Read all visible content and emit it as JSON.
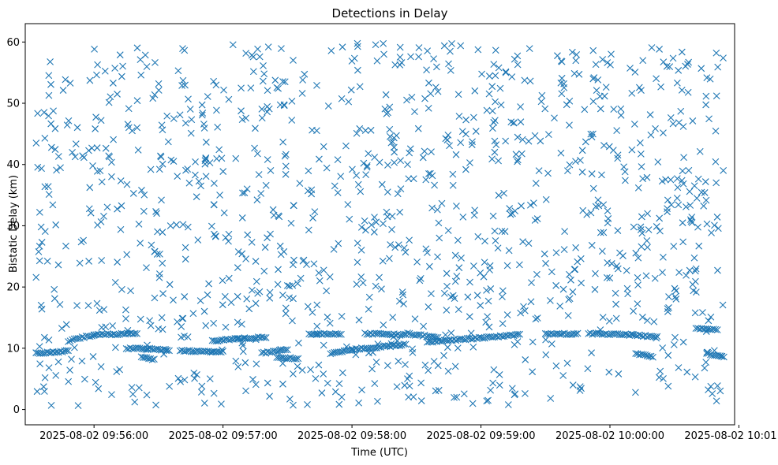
{
  "chart_data": {
    "type": "scatter",
    "title": "Detections in Delay",
    "xlabel": "Time (UTC)",
    "ylabel": "Bistatic Delay (km)",
    "x_unit": "time",
    "xlim": [
      "2025-08-02 09:55:28",
      "2025-08-02 10:00:58"
    ],
    "ylim": [
      -2.5,
      63
    ],
    "x_ticks": [
      "2025-08-02 09:56:00",
      "2025-08-02 09:57:00",
      "2025-08-02 09:58:00",
      "2025-08-02 09:59:00",
      "2025-08-02 10:00:00",
      "2025-08-02 10:01:00"
    ],
    "y_ticks": [
      0,
      10,
      20,
      30,
      40,
      50,
      60
    ],
    "grid": false,
    "marker": "x",
    "marker_color": "#1f77b4",
    "time_span": [
      "2025-08-02 09:55:33",
      "2025-08-02 10:00:53"
    ],
    "noise_point_count": 1150,
    "noise_delay_range": [
      0.5,
      59.8
    ],
    "tracks": [
      {
        "points": [
          [
            "2025-08-02 09:55:33",
            9.2
          ],
          [
            "2025-08-02 09:55:40",
            9.3
          ],
          [
            "2025-08-02 09:55:48",
            9.6
          ]
        ]
      },
      {
        "points": [
          [
            "2025-08-02 09:55:48",
            11.2
          ],
          [
            "2025-08-02 09:56:00",
            12.2
          ],
          [
            "2025-08-02 09:56:20",
            12.4
          ]
        ]
      },
      {
        "points": [
          [
            "2025-08-02 09:56:15",
            10.0
          ],
          [
            "2025-08-02 09:56:25",
            9.9
          ],
          [
            "2025-08-02 09:56:35",
            9.7
          ]
        ]
      },
      {
        "points": [
          [
            "2025-08-02 09:56:22",
            8.5
          ],
          [
            "2025-08-02 09:56:28",
            8.2
          ]
        ]
      },
      {
        "points": [
          [
            "2025-08-02 09:56:40",
            9.6
          ],
          [
            "2025-08-02 09:56:55",
            9.4
          ],
          [
            "2025-08-02 09:57:00",
            9.5
          ]
        ]
      },
      {
        "points": [
          [
            "2025-08-02 09:56:55",
            11.2
          ],
          [
            "2025-08-02 09:57:10",
            11.6
          ],
          [
            "2025-08-02 09:57:20",
            11.8
          ]
        ]
      },
      {
        "points": [
          [
            "2025-08-02 09:57:25",
            8.5
          ],
          [
            "2025-08-02 09:57:35",
            8.3
          ]
        ]
      },
      {
        "points": [
          [
            "2025-08-02 09:57:40",
            12.3
          ],
          [
            "2025-08-02 09:57:55",
            12.3
          ]
        ]
      },
      {
        "points": [
          [
            "2025-08-02 09:57:18",
            9.2
          ],
          [
            "2025-08-02 09:57:30",
            9.7
          ]
        ]
      },
      {
        "points": [
          [
            "2025-08-02 09:57:50",
            9.2
          ],
          [
            "2025-08-02 09:58:00",
            9.8
          ],
          [
            "2025-08-02 09:58:25",
            10.6
          ]
        ]
      },
      {
        "points": [
          [
            "2025-08-02 09:58:06",
            12.4
          ],
          [
            "2025-08-02 09:58:25",
            12.2
          ]
        ]
      },
      {
        "points": [
          [
            "2025-08-02 09:58:25",
            12.4
          ],
          [
            "2025-08-02 09:58:40",
            11.8
          ]
        ]
      },
      {
        "points": [
          [
            "2025-08-02 09:58:35",
            11.0
          ],
          [
            "2025-08-02 09:59:00",
            11.7
          ],
          [
            "2025-08-02 09:59:18",
            12.2
          ]
        ]
      },
      {
        "points": [
          [
            "2025-08-02 09:59:30",
            12.4
          ],
          [
            "2025-08-02 09:59:45",
            12.3
          ]
        ]
      },
      {
        "points": [
          [
            "2025-08-02 09:59:50",
            12.4
          ],
          [
            "2025-08-02 10:00:10",
            12.2
          ],
          [
            "2025-08-02 10:00:22",
            11.8
          ]
        ]
      },
      {
        "points": [
          [
            "2025-08-02 10:00:12",
            9.1
          ],
          [
            "2025-08-02 10:00:20",
            8.6
          ]
        ]
      },
      {
        "points": [
          [
            "2025-08-02 10:00:40",
            13.3
          ],
          [
            "2025-08-02 10:00:50",
            13.0
          ]
        ]
      },
      {
        "points": [
          [
            "2025-08-02 10:00:45",
            9.2
          ],
          [
            "2025-08-02 10:00:53",
            8.5
          ]
        ]
      }
    ]
  }
}
